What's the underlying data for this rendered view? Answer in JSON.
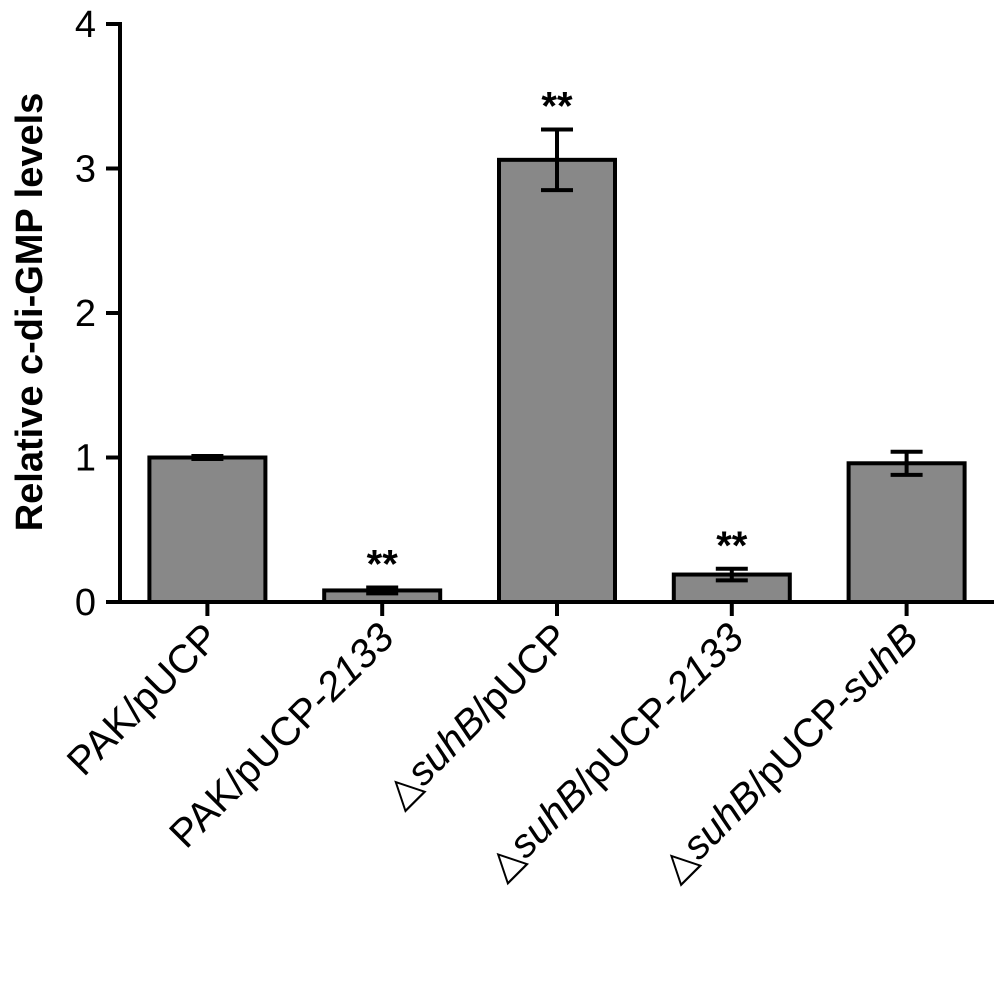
{
  "chart_data": {
    "type": "bar",
    "title": "",
    "xlabel": "",
    "ylabel": "Relative c-di-GMP levels",
    "ylim": [
      0,
      4
    ],
    "yticks": [
      "0",
      "1",
      "2",
      "3",
      "4"
    ],
    "grid": false,
    "categories": [
      {
        "prefix": "",
        "italic": "",
        "plain": "PAK/pUCP",
        "italic_tail": ""
      },
      {
        "prefix": "",
        "italic": "",
        "plain": "PAK/pUCP-",
        "italic_tail": "2133"
      },
      {
        "prefix": "△",
        "italic": "suhB",
        "plain": "/pUCP",
        "italic_tail": ""
      },
      {
        "prefix": "△",
        "italic": "suhB",
        "plain": "/pUCP-",
        "italic_tail": "2133"
      },
      {
        "prefix": "△",
        "italic": "suhB",
        "plain": "/pUCP-",
        "italic_tail": "suhB"
      }
    ],
    "values": [
      1.0,
      0.08,
      3.06,
      0.19,
      0.96
    ],
    "errors": [
      0.01,
      0.02,
      0.21,
      0.04,
      0.08
    ],
    "annotations": [
      "",
      "**",
      "**",
      "**",
      ""
    ],
    "bar_color": "#888888",
    "edge_color": "#000000"
  }
}
